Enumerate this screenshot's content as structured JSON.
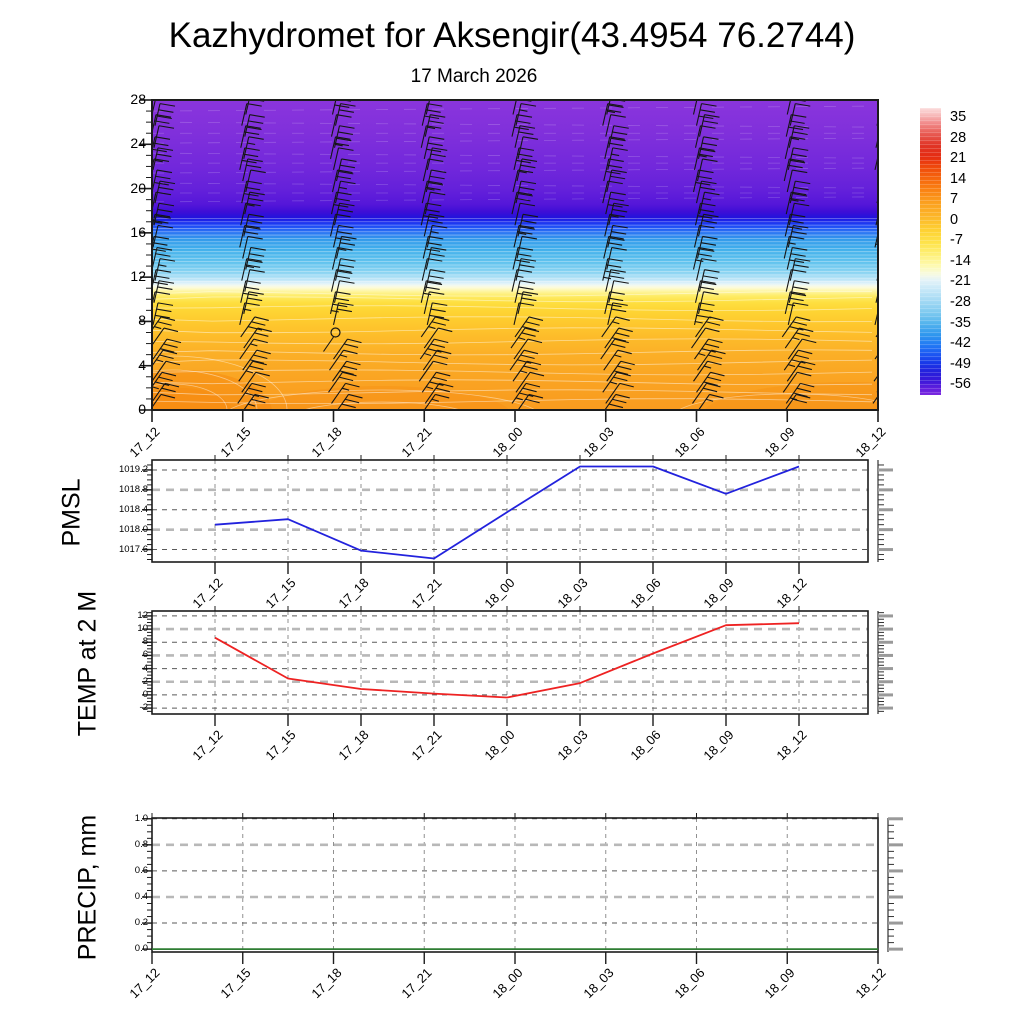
{
  "page": {
    "title": "Kazhydromet for Aksengir(43.4954 76.2744)",
    "subtitle": "17 March 2026"
  },
  "time_labels": [
    "17_12",
    "17_15",
    "17_18",
    "17_21",
    "18_00",
    "18_03",
    "18_06",
    "18_09",
    "18_12"
  ],
  "chart_data": [
    {
      "type": "heatmap",
      "name": "upper-air temperature (shaded) with wind barbs",
      "x": [
        "17_12",
        "17_15",
        "17_18",
        "17_21",
        "18_00",
        "18_03",
        "18_06",
        "18_09",
        "18_12"
      ],
      "ylim": [
        0,
        28
      ],
      "ytick_labels": [
        "28",
        "24",
        "20",
        "16",
        "12",
        "8",
        "4",
        "0"
      ],
      "yticks": [
        28,
        24,
        20,
        16,
        12,
        8,
        4,
        0
      ],
      "grid": false,
      "wind_barbs": {
        "columns": 9,
        "height_from_km": 0.5,
        "height_to_km": 27.5,
        "height_step_km": 1,
        "color": "#151515",
        "calm_marker": {
          "time": "17_18",
          "height_km": 7
        }
      },
      "gradient_stops": [
        {
          "h": 28,
          "c": "#8a35dc"
        },
        {
          "h": 25,
          "c": "#8030db"
        },
        {
          "h": 22,
          "c": "#7228db"
        },
        {
          "h": 20,
          "c": "#6521da"
        },
        {
          "h": 18.6,
          "c": "#5517d9"
        },
        {
          "h": 17.9,
          "c": "#3e0ed6"
        },
        {
          "h": 17.4,
          "c": "#2312dc"
        },
        {
          "h": 17.0,
          "c": "#1a2bee"
        },
        {
          "h": 16.6,
          "c": "#1f4df6"
        },
        {
          "h": 16.1,
          "c": "#2a71f4"
        },
        {
          "h": 15.4,
          "c": "#339beb"
        },
        {
          "h": 14.4,
          "c": "#45b2ec"
        },
        {
          "h": 13.3,
          "c": "#64c4ee"
        },
        {
          "h": 12.3,
          "c": "#92d7f3"
        },
        {
          "h": 11.8,
          "c": "#bce5f7"
        },
        {
          "h": 11.45,
          "c": "#dff2fa"
        },
        {
          "h": 11.25,
          "c": "#f3f9ef"
        },
        {
          "h": 11.05,
          "c": "#fdfbd8"
        },
        {
          "h": 10.75,
          "c": "#fef6a6"
        },
        {
          "h": 10.3,
          "c": "#feec66"
        },
        {
          "h": 9.7,
          "c": "#fedf40"
        },
        {
          "h": 9.0,
          "c": "#fed534"
        },
        {
          "h": 8.0,
          "c": "#feca2e"
        },
        {
          "h": 6.5,
          "c": "#fdbb2a"
        },
        {
          "h": 5.0,
          "c": "#fbaf27"
        },
        {
          "h": 3.0,
          "c": "#faa523"
        },
        {
          "h": 1.0,
          "c": "#f99e20"
        },
        {
          "h": 0,
          "c": "#f99c1f"
        }
      ],
      "contour_line_color": "#ffffff",
      "colorbar": {
        "tick_labels": [
          "35",
          "28",
          "21",
          "14",
          "7",
          "0",
          "-7",
          "-14",
          "-21",
          "-28",
          "-35",
          "-42",
          "-49",
          "-56"
        ],
        "stops": [
          {
            "p": 0,
            "c": "#fbdcdc"
          },
          {
            "p": 2,
            "c": "#f8c2c2"
          },
          {
            "p": 5,
            "c": "#f29090"
          },
          {
            "p": 9,
            "c": "#e85a52"
          },
          {
            "p": 13,
            "c": "#e03426"
          },
          {
            "p": 17,
            "c": "#e52d12"
          },
          {
            "p": 21,
            "c": "#f04d0c"
          },
          {
            "p": 25,
            "c": "#f66a0e"
          },
          {
            "p": 29,
            "c": "#fa8514"
          },
          {
            "p": 33,
            "c": "#fba01f"
          },
          {
            "p": 38,
            "c": "#fcb72a"
          },
          {
            "p": 43,
            "c": "#fed334"
          },
          {
            "p": 47,
            "c": "#fee34c"
          },
          {
            "p": 51,
            "c": "#fef078"
          },
          {
            "p": 55,
            "c": "#fefab2"
          },
          {
            "p": 58,
            "c": "#f6fae2"
          },
          {
            "p": 60,
            "c": "#e4f3f8"
          },
          {
            "p": 63,
            "c": "#c9e9f8"
          },
          {
            "p": 67,
            "c": "#a5daf4"
          },
          {
            "p": 71,
            "c": "#81cbf0"
          },
          {
            "p": 75,
            "c": "#55b4ed"
          },
          {
            "p": 79,
            "c": "#2f97ee"
          },
          {
            "p": 83,
            "c": "#2176f4"
          },
          {
            "p": 86,
            "c": "#1c55f2"
          },
          {
            "p": 89,
            "c": "#1837e8"
          },
          {
            "p": 92,
            "c": "#2520dc"
          },
          {
            "p": 95,
            "c": "#3a18d9"
          },
          {
            "p": 98,
            "c": "#641fdd"
          },
          {
            "p": 100,
            "c": "#7b28df"
          }
        ]
      }
    },
    {
      "type": "line",
      "name": "PMSL",
      "color": "#2222dd",
      "x": [
        "17_12",
        "17_15",
        "17_18",
        "17_21",
        "18_00",
        "18_03",
        "18_06",
        "18_09",
        "18_12"
      ],
      "values": [
        1018.1,
        1018.21,
        1017.58,
        1017.42,
        1018.35,
        1019.27,
        1019.27,
        1018.72,
        1019.27
      ],
      "ytick_labels": [
        "1019.2",
        "1018.8",
        "1018.4",
        "1018.0",
        "1017.6"
      ],
      "yticks": [
        1019.2,
        1018.8,
        1018.4,
        1018.0,
        1017.6
      ],
      "thick_grid_at": [
        1018.8,
        1018.0
      ],
      "ylim": [
        1017.35,
        1019.4
      ]
    },
    {
      "type": "line",
      "name": "TEMP at 2 M",
      "color": "#ee2222",
      "x": [
        "17_12",
        "17_15",
        "17_18",
        "17_21",
        "18_00",
        "18_03",
        "18_06",
        "18_09",
        "18_12"
      ],
      "values": [
        8.7,
        2.5,
        0.9,
        0.2,
        -0.4,
        1.8,
        6.3,
        10.6,
        10.9
      ],
      "ytick_labels": [
        "12",
        "10",
        "8",
        "6",
        "4",
        "2",
        "0",
        "-2"
      ],
      "yticks": [
        12,
        10,
        8,
        6,
        4,
        2,
        0,
        -2
      ],
      "thick_grid_at": [
        10,
        6,
        2
      ],
      "ylim": [
        -2.9,
        12.75
      ]
    },
    {
      "type": "line",
      "name": "PRECIP, mm",
      "color": "#2e7d32",
      "x": [
        "17_12",
        "17_15",
        "17_18",
        "17_21",
        "18_00",
        "18_03",
        "18_06",
        "18_09",
        "18_12"
      ],
      "values": [
        0,
        0,
        0,
        0,
        0,
        0,
        0,
        0,
        0
      ],
      "ytick_labels": [
        "1.0",
        "0.8",
        "0.6",
        "0.4",
        "0.2",
        "0.0"
      ],
      "yticks": [
        1.0,
        0.8,
        0.6,
        0.4,
        0.2,
        0.0
      ],
      "thick_grid_at": [
        0.8,
        0.4
      ],
      "ylim": [
        -0.022,
        1.006
      ]
    }
  ]
}
